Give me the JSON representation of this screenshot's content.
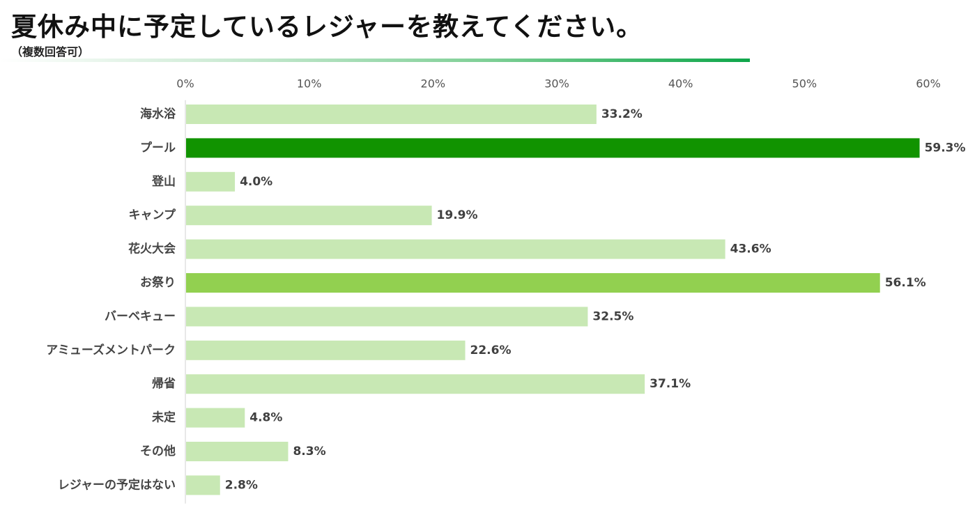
{
  "header": {
    "title": "夏休み中に予定しているレジャーを教えてください。",
    "subtitle": "（複数回答可）"
  },
  "chart_data": {
    "type": "bar",
    "orientation": "horizontal",
    "title": "夏休み中に予定しているレジャーを教えてください。",
    "subtitle": "（複数回答可）",
    "xlabel": "",
    "ylabel": "",
    "xlim": [
      0,
      60
    ],
    "axis_position": "top",
    "ticks": [
      0,
      10,
      20,
      30,
      40,
      50,
      60
    ],
    "tick_labels": [
      "0%",
      "10%",
      "20%",
      "30%",
      "40%",
      "50%",
      "60%"
    ],
    "grid": false,
    "categories": [
      "海水浴",
      "プール",
      "登山",
      "キャンプ",
      "花火大会",
      "お祭り",
      "バーベキュー",
      "アミューズメントパーク",
      "帰省",
      "未定",
      "その他",
      "レジャーの予定はない"
    ],
    "values": [
      33.2,
      59.3,
      4.0,
      19.9,
      43.6,
      56.1,
      32.5,
      22.6,
      37.1,
      4.8,
      8.3,
      2.8
    ],
    "value_labels": [
      "33.2%",
      "59.3%",
      "4.0%",
      "19.9%",
      "43.6%",
      "56.1%",
      "32.5%",
      "22.6%",
      "37.1%",
      "4.8%",
      "8.3%",
      "2.8%"
    ],
    "colors": {
      "default": "#c8e8b4",
      "highlight_first": "#119300",
      "highlight_second": "#92d050",
      "axis": "#d0d0d0",
      "title_rule": "#0ea64a"
    },
    "highlights": {
      "first": "プール",
      "second": "お祭り"
    }
  }
}
